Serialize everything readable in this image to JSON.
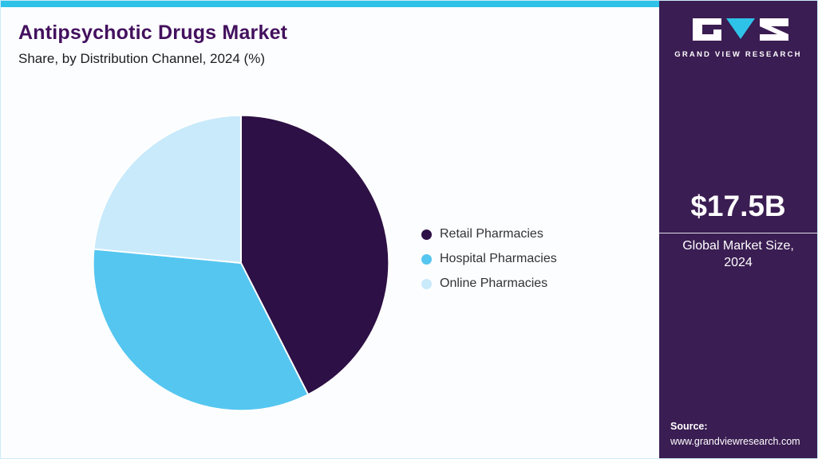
{
  "header": {
    "title": "Antipsychotic Drugs Market",
    "subtitle": "Share, by Distribution Channel, 2024 (%)"
  },
  "chart_data": {
    "type": "pie",
    "title": "Antipsychotic Drugs Market Share, by Distribution Channel, 2024 (%)",
    "categories": [
      "Retail Pharmacies",
      "Hospital Pharmacies",
      "Online Pharmacies"
    ],
    "values": [
      42.5,
      34.0,
      23.5
    ],
    "colors": [
      "#2d1045",
      "#55c6f0",
      "#c9eafb"
    ],
    "start_angle_deg": 0,
    "legend_position": "right",
    "grid": false
  },
  "sidebar": {
    "logo_letters": [
      "G",
      "V",
      "R"
    ],
    "logo_text": "GRAND VIEW RESEARCH",
    "market_size": "$17.5B",
    "market_size_label": "Global Market Size, 2024",
    "source_label": "Source:",
    "source_url": "www.grandviewresearch.com"
  },
  "colors": {
    "accent_cyan": "#2ec2e8",
    "sidebar_bg": "#3a1d52",
    "title_purple": "#43105e",
    "legend_text": "#333333"
  }
}
